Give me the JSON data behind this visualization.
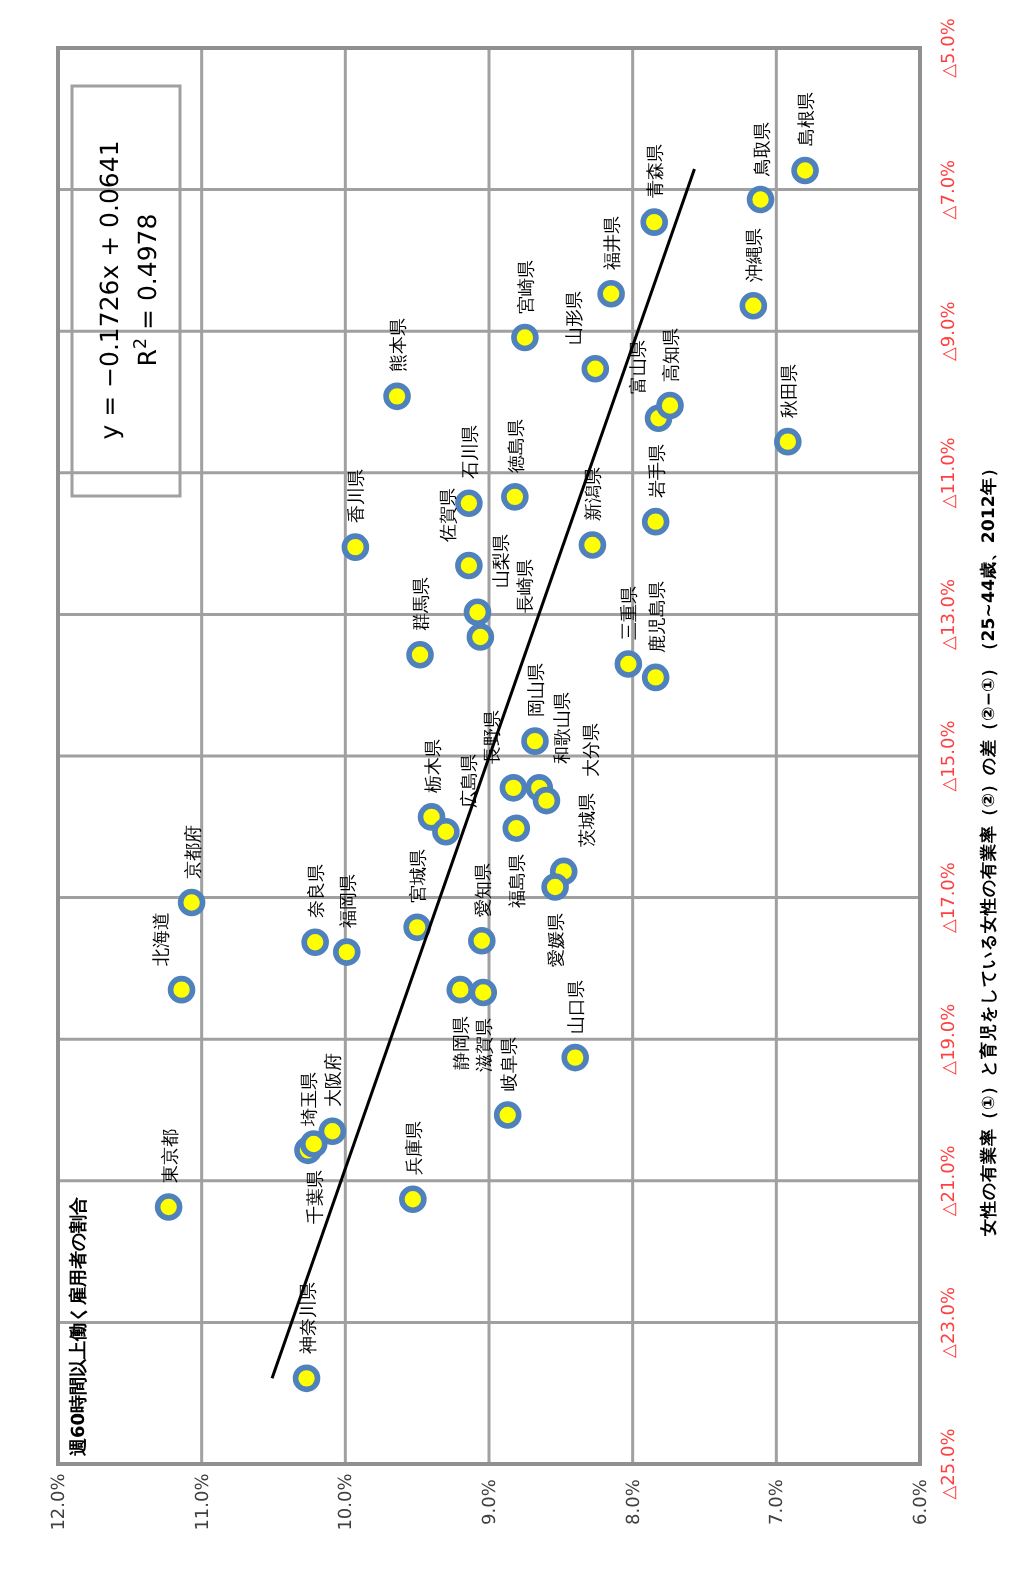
{
  "chart_data": {
    "type": "scatter",
    "ylabel": "女性の有業率（①）と育児をしている女性の有業率（②）の差（②−①）（25~44歳、2012年）",
    "xlim": [
      12,
      6
    ],
    "ylim": [
      -25,
      -5
    ],
    "xticks": [
      {
        "value": 12,
        "label": "12.0%"
      },
      {
        "value": 11,
        "label": "11.0%"
      },
      {
        "value": 10,
        "label": "10.0%"
      },
      {
        "value": 9,
        "label": "9.0%"
      },
      {
        "value": 8,
        "label": "8.0%"
      },
      {
        "value": 7,
        "label": "7.0%"
      },
      {
        "value": 6,
        "label": "6.0%"
      }
    ],
    "yticks": [
      {
        "value": -5,
        "label": "△5.0%"
      },
      {
        "value": -7,
        "label": "△7.0%"
      },
      {
        "value": -9,
        "label": "△9.0%"
      },
      {
        "value": -11,
        "label": "△11.0%"
      },
      {
        "value": -13,
        "label": "△13.0%"
      },
      {
        "value": -15,
        "label": "△15.0%"
      },
      {
        "value": -17,
        "label": "△17.0%"
      },
      {
        "value": -19,
        "label": "△19.0%"
      },
      {
        "value": -21,
        "label": "△21.0%"
      },
      {
        "value": -23,
        "label": "△23.0%"
      },
      {
        "value": -25,
        "label": "△25.0%"
      }
    ],
    "grid": true,
    "series": [
      {
        "type": "scatter",
        "marker": "circle",
        "color": "#ffff00",
        "x": [
          11.14,
          7.85,
          7.84,
          9.5,
          6.92,
          8.26,
          8.81,
          8.48,
          9.4,
          9.48,
          10.26,
          10.22,
          11.23,
          10.27,
          8.28,
          7.82,
          9.14,
          8.15,
          9.08,
          8.83,
          8.87,
          9.2,
          9.05,
          8.03,
          9.04,
          11.07,
          10.09,
          9.53,
          10.21,
          8.65,
          7.11,
          6.8,
          8.68,
          9.3,
          8.4,
          8.82,
          9.93,
          8.54,
          7.74,
          9.99,
          9.14,
          9.06,
          9.64,
          8.6,
          8.75,
          7.84,
          7.16
        ],
        "values": [
          -18.3,
          -7.46,
          -11.69,
          -17.42,
          -10.56,
          -9.53,
          -16.02,
          -16.63,
          -15.86,
          -13.57,
          -20.57,
          -20.48,
          -21.37,
          -23.79,
          -12.02,
          -10.23,
          -11.43,
          -8.47,
          -12.97,
          -15.45,
          -20.07,
          -18.3,
          -17.61,
          -13.7,
          -18.34,
          -17.07,
          -20.3,
          -21.26,
          -17.63,
          -15.45,
          -7.14,
          -6.73,
          -14.79,
          -16.07,
          -19.26,
          -11.34,
          -12.05,
          -16.85,
          -10.05,
          -17.77,
          -12.31,
          -13.32,
          -9.92,
          -15.63,
          -9.09,
          -13.89,
          -8.64
        ]
      },
      {
        "type": "line",
        "color": "#000000",
        "x": [
          10.51,
          7.57
        ],
        "values": [
          -23.79,
          -6.71
        ]
      }
    ],
    "annotations": [
      "週60時間以上働く雇用者の割合",
      "y = −0.1726x + 0.0641",
      "R$^{2}$ = 0.4978",
      {
        "text": "北海道",
        "x": 11.14,
        "y": -18.3
      },
      {
        "text": "青森県",
        "x": 7.85,
        "y": -7.46
      },
      {
        "text": "岩手県",
        "x": 7.84,
        "y": -11.69
      },
      {
        "text": "宮城県",
        "x": 9.5,
        "y": -17.42
      },
      {
        "text": "秋田県",
        "x": 6.92,
        "y": -10.56
      },
      {
        "text": "山形県",
        "x": 8.26,
        "y": -9.53
      },
      {
        "text": "福島県",
        "x": 8.81,
        "y": -16.02
      },
      {
        "text": "茨城県",
        "x": 8.48,
        "y": -16.63
      },
      {
        "text": "栃木県",
        "x": 9.4,
        "y": -15.86
      },
      {
        "text": "群馬県",
        "x": 9.48,
        "y": -13.57
      },
      {
        "text": "埼玉県",
        "x": 10.26,
        "y": -20.57
      },
      {
        "text": "千葉県",
        "x": 10.22,
        "y": -20.48
      },
      {
        "text": "東京都",
        "x": 11.23,
        "y": -21.37
      },
      {
        "text": "神奈川県",
        "x": 10.27,
        "y": -23.79
      },
      {
        "text": "新潟県",
        "x": 8.28,
        "y": -12.02
      },
      {
        "text": "富山県",
        "x": 7.82,
        "y": -10.23
      },
      {
        "text": "石川県",
        "x": 9.14,
        "y": -11.43
      },
      {
        "text": "福井県",
        "x": 8.15,
        "y": -8.47
      },
      {
        "text": "山梨県",
        "x": 9.08,
        "y": -12.97
      },
      {
        "text": "長野県",
        "x": 8.83,
        "y": -15.45
      },
      {
        "text": "岐阜県",
        "x": 8.87,
        "y": -20.07
      },
      {
        "text": "静岡県",
        "x": 9.2,
        "y": -18.3
      },
      {
        "text": "愛知県",
        "x": 9.05,
        "y": -17.61
      },
      {
        "text": "三重県",
        "x": 8.03,
        "y": -13.7
      },
      {
        "text": "滋賀県",
        "x": 9.04,
        "y": -18.34
      },
      {
        "text": "京都府",
        "x": 11.07,
        "y": -17.07
      },
      {
        "text": "大阪府",
        "x": 10.09,
        "y": -20.3
      },
      {
        "text": "兵庫県",
        "x": 9.53,
        "y": -21.26
      },
      {
        "text": "奈良県",
        "x": 10.21,
        "y": -17.63
      },
      {
        "text": "和歌山県",
        "x": 8.65,
        "y": -15.45
      },
      {
        "text": "鳥取県",
        "x": 7.11,
        "y": -7.14
      },
      {
        "text": "島根県",
        "x": 6.8,
        "y": -6.73
      },
      {
        "text": "岡山県",
        "x": 8.68,
        "y": -14.79
      },
      {
        "text": "広島県",
        "x": 9.3,
        "y": -16.07
      },
      {
        "text": "山口県",
        "x": 8.4,
        "y": -19.26
      },
      {
        "text": "徳島県",
        "x": 8.82,
        "y": -11.34
      },
      {
        "text": "香川県",
        "x": 9.93,
        "y": -12.05
      },
      {
        "text": "愛媛県",
        "x": 8.54,
        "y": -16.85
      },
      {
        "text": "高知県",
        "x": 7.74,
        "y": -10.05
      },
      {
        "text": "福岡県",
        "x": 9.99,
        "y": -17.77
      },
      {
        "text": "佐賀県",
        "x": 9.14,
        "y": -12.31
      },
      {
        "text": "長崎県",
        "x": 9.06,
        "y": -13.32
      },
      {
        "text": "熊本県",
        "x": 9.64,
        "y": -9.92
      },
      {
        "text": "大分県",
        "x": 8.6,
        "y": -15.63
      },
      {
        "text": "宮崎県",
        "x": 8.75,
        "y": -9.09
      },
      {
        "text": "鹿児島県",
        "x": 7.84,
        "y": -13.89
      },
      {
        "text": "沖縄県",
        "x": 7.16,
        "y": -8.64
      }
    ]
  }
}
